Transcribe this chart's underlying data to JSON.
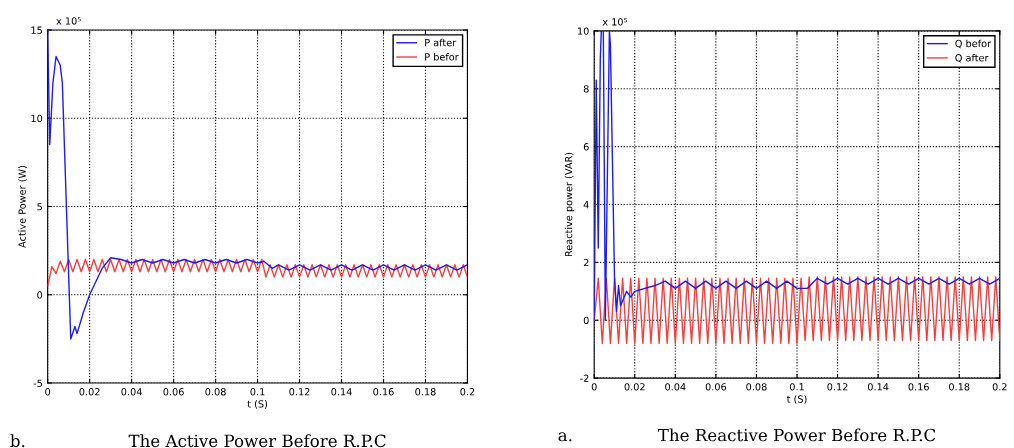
{
  "chart_data": [
    {
      "type": "line",
      "title": "The Active Power Before R.P.C",
      "xlabel": "t (S)",
      "ylabel": "Active Power (W)",
      "annotations": [
        "x 10⁵",
        "b."
      ],
      "xlim": [
        0,
        0.2
      ],
      "xticks": [
        0,
        0.02,
        0.04,
        0.06,
        0.08,
        0.1,
        0.12,
        0.14,
        0.16,
        0.18,
        0.2
      ],
      "ylim": [
        -5,
        15
      ],
      "yticks": [
        -5,
        0,
        5,
        10,
        15
      ],
      "grid": true,
      "legend": "top right",
      "series": [
        {
          "name": "P after",
          "color": "#1a1aff",
          "x": [
            0,
            0.001,
            0.0025,
            0.004,
            0.006,
            0.007,
            0.011,
            0.013,
            0.014,
            0.017,
            0.02,
            0.026,
            0.03,
            0.035,
            0.04,
            0.045,
            0.05,
            0.055,
            0.06,
            0.065,
            0.07,
            0.075,
            0.08,
            0.085,
            0.09,
            0.095,
            0.1,
            0.103,
            0.107,
            0.11,
            0.115,
            0.12,
            0.125,
            0.13,
            0.135,
            0.14,
            0.145,
            0.15,
            0.155,
            0.16,
            0.165,
            0.17,
            0.175,
            0.18,
            0.185,
            0.19,
            0.195,
            0.2
          ],
          "values": [
            15,
            8.5,
            12,
            13.5,
            13,
            12,
            -2.5,
            -1.8,
            -2.2,
            -1,
            0,
            1.5,
            2.1,
            2.0,
            1.8,
            2.0,
            1.8,
            2.0,
            1.8,
            2.0,
            1.8,
            2.0,
            1.8,
            2.0,
            1.8,
            2.0,
            1.8,
            1.9,
            1.5,
            1.7,
            1.4,
            1.7,
            1.4,
            1.7,
            1.4,
            1.7,
            1.4,
            1.7,
            1.4,
            1.7,
            1.4,
            1.7,
            1.4,
            1.7,
            1.4,
            1.7,
            1.4,
            1.7
          ]
        },
        {
          "name": "P befor",
          "color": "#ff3b3b",
          "x": [
            0,
            0.002,
            0.004,
            0.006,
            0.008,
            0.01,
            0.012,
            0.014,
            0.016,
            0.018,
            0.02,
            0.022,
            0.024,
            0.026,
            0.028,
            0.03,
            0.032,
            0.034,
            0.036,
            0.038,
            0.04,
            0.042,
            0.044,
            0.046,
            0.048,
            0.05,
            0.052,
            0.054,
            0.056,
            0.058,
            0.06,
            0.062,
            0.064,
            0.066,
            0.068,
            0.07,
            0.072,
            0.074,
            0.076,
            0.078,
            0.08,
            0.082,
            0.084,
            0.086,
            0.088,
            0.09,
            0.092,
            0.094,
            0.096,
            0.098,
            0.1,
            0.102,
            0.104,
            0.106,
            0.108,
            0.11,
            0.112,
            0.114,
            0.116,
            0.118,
            0.12,
            0.122,
            0.124,
            0.126,
            0.128,
            0.13,
            0.132,
            0.134,
            0.136,
            0.138,
            0.14,
            0.142,
            0.144,
            0.146,
            0.148,
            0.15,
            0.152,
            0.154,
            0.156,
            0.158,
            0.16,
            0.162,
            0.164,
            0.166,
            0.168,
            0.17,
            0.172,
            0.174,
            0.176,
            0.178,
            0.18,
            0.182,
            0.184,
            0.186,
            0.188,
            0.19,
            0.192,
            0.194,
            0.196,
            0.198,
            0.2
          ],
          "values": [
            0.5,
            1.6,
            1.2,
            1.9,
            1.3,
            2.0,
            1.3,
            2.0,
            1.3,
            2.0,
            1.3,
            2.0,
            1.3,
            2.0,
            1.3,
            2.0,
            1.3,
            2.0,
            1.3,
            2.0,
            1.3,
            2.0,
            1.3,
            2.0,
            1.3,
            2.0,
            1.3,
            2.0,
            1.3,
            2.0,
            1.3,
            2.0,
            1.3,
            2.0,
            1.3,
            2.0,
            1.3,
            2.0,
            1.3,
            2.0,
            1.3,
            2.0,
            1.3,
            2.0,
            1.3,
            2.0,
            1.3,
            2.0,
            1.3,
            2.0,
            1.3,
            2.0,
            1.0,
            1.7,
            1.0,
            1.7,
            1.0,
            1.7,
            1.0,
            1.7,
            1.0,
            1.7,
            1.0,
            1.7,
            1.0,
            1.7,
            1.0,
            1.7,
            1.0,
            1.7,
            1.0,
            1.7,
            1.0,
            1.7,
            1.0,
            1.7,
            1.0,
            1.7,
            1.0,
            1.7,
            1.0,
            1.7,
            1.0,
            1.7,
            1.0,
            1.7,
            1.0,
            1.7,
            1.0,
            1.7,
            1.0,
            1.7,
            1.0,
            1.7,
            1.0,
            1.7,
            1.0,
            1.7,
            1.0,
            1.7,
            1.0
          ]
        }
      ]
    },
    {
      "type": "line",
      "title": "The Reactive Power Before R.P.C",
      "xlabel": "t (S)",
      "ylabel": "Reactive power (VAR)",
      "annotations": [
        "x 10⁵",
        "a."
      ],
      "xlim": [
        0,
        0.2
      ],
      "xticks": [
        0,
        0.02,
        0.04,
        0.06,
        0.08,
        0.1,
        0.12,
        0.14,
        0.16,
        0.18,
        0.2
      ],
      "ylim": [
        -2,
        10
      ],
      "yticks": [
        -2,
        0,
        2,
        4,
        6,
        8,
        10
      ],
      "grid": true,
      "legend": "top right",
      "series": [
        {
          "name": "Q befor",
          "color": "#1a1aff",
          "x": [
            0,
            0.001,
            0.002,
            0.003,
            0.0035,
            0.0045,
            0.0055,
            0.0065,
            0.0075,
            0.008,
            0.01,
            0.011,
            0.012,
            0.013,
            0.016,
            0.018,
            0.02,
            0.025,
            0.03,
            0.035,
            0.04,
            0.045,
            0.05,
            0.055,
            0.06,
            0.065,
            0.07,
            0.075,
            0.08,
            0.085,
            0.09,
            0.095,
            0.1,
            0.105,
            0.11,
            0.115,
            0.12,
            0.125,
            0.13,
            0.135,
            0.14,
            0.145,
            0.15,
            0.155,
            0.16,
            0.165,
            0.17,
            0.175,
            0.18,
            0.185,
            0.19,
            0.195,
            0.2
          ],
          "values": [
            0,
            8.3,
            2.5,
            9,
            10,
            10,
            0,
            5,
            10,
            9.5,
            1.5,
            0.3,
            1.2,
            0.5,
            1.0,
            0.8,
            1.0,
            1.1,
            1.2,
            1.35,
            1.1,
            1.35,
            1.1,
            1.35,
            1.1,
            1.35,
            1.1,
            1.35,
            1.1,
            1.35,
            1.1,
            1.35,
            1.1,
            1.1,
            1.45,
            1.25,
            1.45,
            1.25,
            1.45,
            1.25,
            1.45,
            1.25,
            1.45,
            1.25,
            1.45,
            1.25,
            1.45,
            1.25,
            1.45,
            1.25,
            1.45,
            1.25,
            1.45
          ]
        },
        {
          "name": "Q after",
          "color": "#ff3b3b",
          "x": [
            0,
            0.002,
            0.004,
            0.006,
            0.008,
            0.01,
            0.012,
            0.014,
            0.016,
            0.018,
            0.02,
            0.022,
            0.024,
            0.026,
            0.028,
            0.03,
            0.032,
            0.034,
            0.036,
            0.038,
            0.04,
            0.042,
            0.044,
            0.046,
            0.048,
            0.05,
            0.052,
            0.054,
            0.056,
            0.058,
            0.06,
            0.062,
            0.064,
            0.066,
            0.068,
            0.07,
            0.072,
            0.074,
            0.076,
            0.078,
            0.08,
            0.082,
            0.084,
            0.086,
            0.088,
            0.09,
            0.092,
            0.094,
            0.096,
            0.098,
            0.1,
            0.102,
            0.104,
            0.106,
            0.108,
            0.11,
            0.112,
            0.114,
            0.116,
            0.118,
            0.12,
            0.122,
            0.124,
            0.126,
            0.128,
            0.13,
            0.132,
            0.134,
            0.136,
            0.138,
            0.14,
            0.142,
            0.144,
            0.146,
            0.148,
            0.15,
            0.152,
            0.154,
            0.156,
            0.158,
            0.16,
            0.162,
            0.164,
            0.166,
            0.168,
            0.17,
            0.172,
            0.174,
            0.176,
            0.178,
            0.18,
            0.182,
            0.184,
            0.186,
            0.188,
            0.19,
            0.192,
            0.194,
            0.196,
            0.198,
            0.2
          ],
          "values": [
            0,
            1.45,
            -0.8,
            1.45,
            -0.8,
            1.45,
            -0.8,
            1.45,
            -0.8,
            1.45,
            -0.8,
            1.45,
            -0.8,
            1.45,
            -0.8,
            1.45,
            -0.8,
            1.45,
            -0.8,
            1.45,
            -0.8,
            1.45,
            -0.8,
            1.45,
            -0.8,
            1.45,
            -0.8,
            1.45,
            -0.8,
            1.45,
            -0.8,
            1.45,
            -0.8,
            1.45,
            -0.8,
            1.45,
            -0.8,
            1.45,
            -0.8,
            1.45,
            -0.8,
            1.45,
            -0.8,
            1.45,
            -0.8,
            1.45,
            -0.8,
            1.45,
            -0.8,
            1.45,
            -0.8,
            1.45,
            -0.7,
            1.5,
            -0.7,
            1.5,
            -0.7,
            1.5,
            -0.7,
            1.5,
            -0.7,
            1.5,
            -0.7,
            1.5,
            -0.7,
            1.5,
            -0.7,
            1.5,
            -0.7,
            1.5,
            -0.7,
            1.5,
            -0.7,
            1.5,
            -0.7,
            1.5,
            -0.7,
            1.5,
            -0.7,
            1.5,
            -0.7,
            1.5,
            -0.7,
            1.5,
            -0.7,
            1.5,
            -0.7,
            1.5,
            -0.7,
            1.5,
            -0.7,
            1.5,
            -0.7,
            1.5,
            -0.7,
            1.5,
            -0.7,
            1.5,
            -0.7,
            1.5,
            -0.7
          ]
        }
      ]
    }
  ]
}
